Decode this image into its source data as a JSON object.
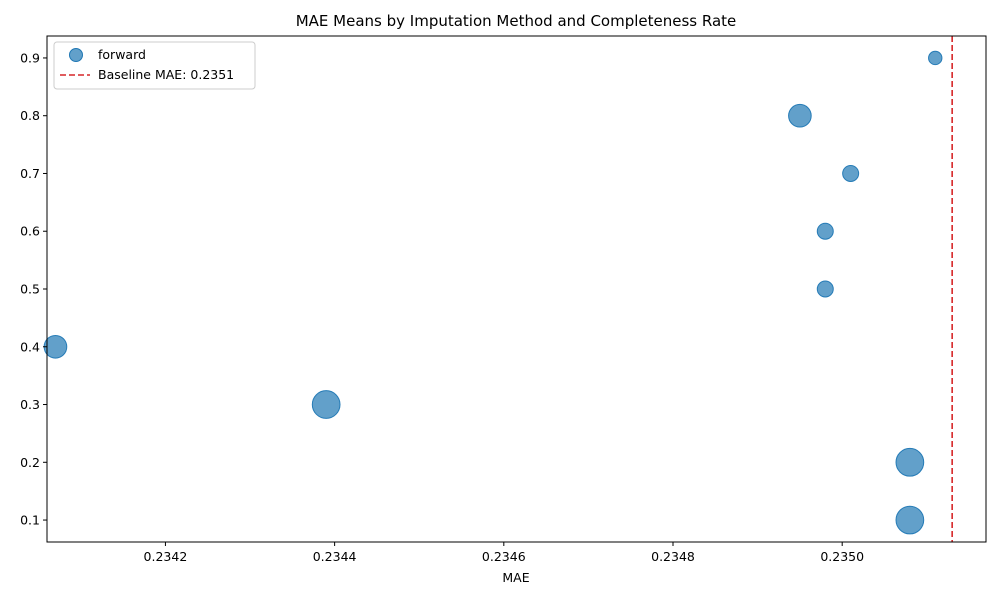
{
  "chart_data": {
    "type": "scatter",
    "title": "MAE Means by Imputation Method and Completeness Rate",
    "xlabel": "MAE",
    "ylabel": "",
    "xlim": [
      0.23406,
      0.23517
    ],
    "ylim": [
      0.062,
      0.938
    ],
    "x_ticks": [
      0.2342,
      0.2344,
      0.2346,
      0.2348,
      0.235
    ],
    "x_tick_labels": [
      "0.2342",
      "0.2344",
      "0.2346",
      "0.2348",
      "0.2350"
    ],
    "y_ticks": [
      0.1,
      0.2,
      0.3,
      0.4,
      0.5,
      0.6,
      0.7,
      0.8,
      0.9
    ],
    "y_tick_labels": [
      "0.1",
      "0.2",
      "0.3",
      "0.4",
      "0.5",
      "0.6",
      "0.7",
      "0.8",
      "0.9"
    ],
    "grid": false,
    "legend_position": "top-left",
    "series": [
      {
        "name": "forward",
        "color": "#1f77b4",
        "opacity": 0.7,
        "points": [
          {
            "x": 0.23508,
            "y": 0.1,
            "size": 3
          },
          {
            "x": 0.23508,
            "y": 0.2,
            "size": 3
          },
          {
            "x": 0.23439,
            "y": 0.3,
            "size": 3
          },
          {
            "x": 0.23407,
            "y": 0.4,
            "size": 2
          },
          {
            "x": 0.23498,
            "y": 0.5,
            "size": 1
          },
          {
            "x": 0.23498,
            "y": 0.6,
            "size": 1
          },
          {
            "x": 0.23501,
            "y": 0.7,
            "size": 1
          },
          {
            "x": 0.23495,
            "y": 0.8,
            "size": 2
          },
          {
            "x": 0.23511,
            "y": 0.9,
            "size": 0.7
          }
        ]
      }
    ],
    "reference_lines": [
      {
        "orientation": "vertical",
        "x": 0.23513,
        "color": "#d62728",
        "style": "dashed",
        "label": "Baseline MAE: 0.2351"
      }
    ]
  }
}
